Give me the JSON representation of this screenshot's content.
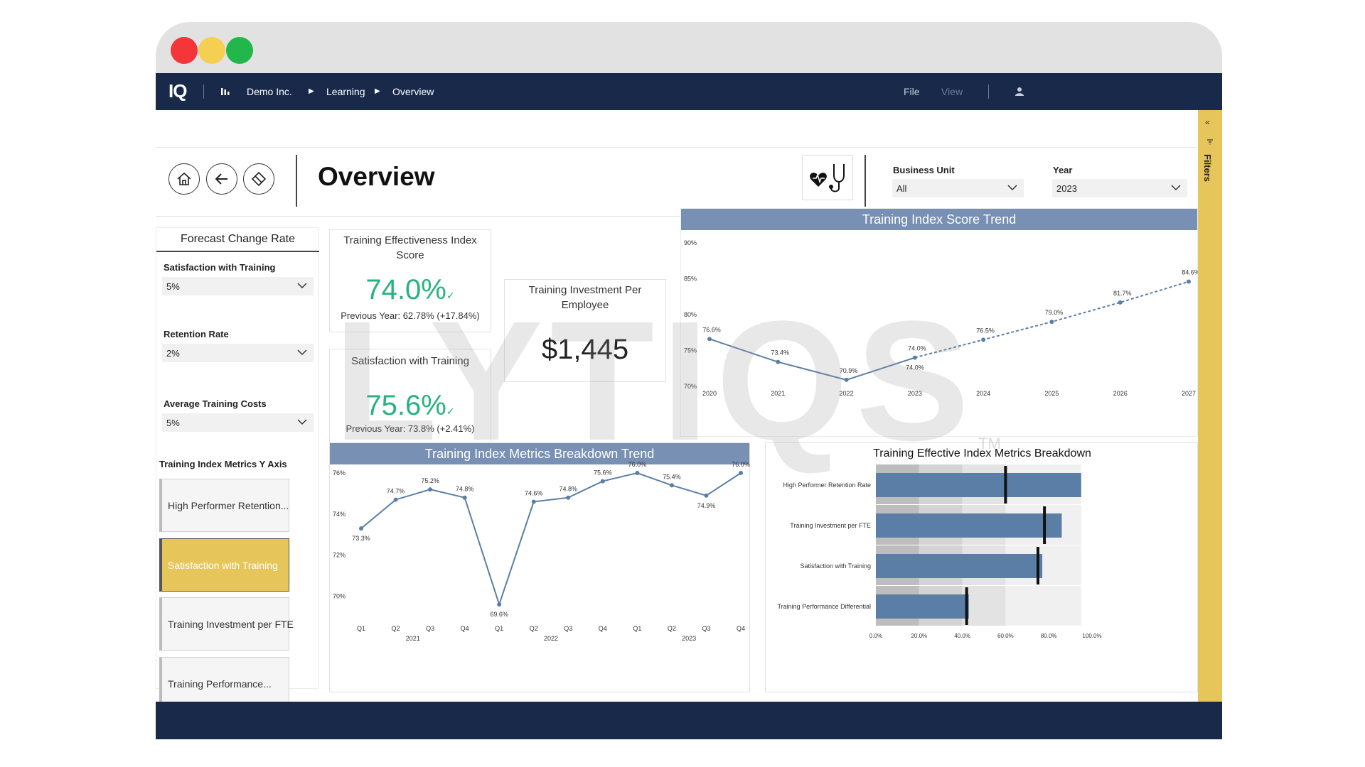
{
  "traffic_lights": {
    "red": "#f4363a",
    "yellow": "#f5cf52",
    "green": "#21b74b"
  },
  "navbar": {
    "logo": "IQ",
    "org": "Demo Inc.",
    "crumb1": "Learning",
    "crumb2": "Overview",
    "file": "File",
    "view": "View"
  },
  "header": {
    "title": "Overview"
  },
  "filters_header": {
    "business_unit_label": "Business Unit",
    "business_unit_value": "All",
    "year_label": "Year",
    "year_value": "2023"
  },
  "filter_pane": {
    "label": "Filters"
  },
  "forecast": {
    "title": "Forecast Change Rate",
    "items": [
      {
        "label": "Satisfaction with Training",
        "value": "5%"
      },
      {
        "label": "Retention Rate",
        "value": "2%"
      },
      {
        "label": "Average Training Costs",
        "value": "5%"
      }
    ]
  },
  "y_axis_selector": {
    "title": "Training Index Metrics Y Axis",
    "tiles": [
      "High Performer Retention...",
      "Satisfaction with Training",
      "Training Investment per FTE",
      "Training Performance..."
    ],
    "active_index": 1
  },
  "kpis": {
    "effectiveness": {
      "title": "Training Effectiveness Index Score",
      "value": "74.0%",
      "sub": "Previous Year: 62.78% (+17.84%)"
    },
    "satisfaction": {
      "title": "Satisfaction with Training",
      "value": "75.6%",
      "sub": "Previous Year: 73.8% (+2.41%)"
    },
    "investment": {
      "title": "Training Investment Per Employee",
      "value": "$1,445"
    }
  },
  "watermark": {
    "text": "LYTIQS",
    "tm": "TM"
  },
  "colors": {
    "navy": "#18294a",
    "accent": "#e6c55a",
    "series": "#5b7ea6",
    "kpi_green": "#25b47e",
    "title_bar": "#7790b3"
  },
  "chart_data": [
    {
      "type": "line",
      "title": "Training Index Score Trend",
      "x": [
        "2020",
        "2021",
        "2022",
        "2023",
        "2024",
        "2025",
        "2026",
        "2027"
      ],
      "values": [
        76.6,
        73.4,
        70.9,
        74.0,
        76.5,
        79.0,
        81.7,
        84.6
      ],
      "labels": [
        "76.6%",
        "73.4%",
        "70.9%",
        "74.0%",
        "76.5%",
        "79.0%",
        "81.7%",
        "84.6%"
      ],
      "extra_label": "74.0%",
      "forecast_from_index": 3,
      "y_ticks": [
        "70%",
        "75%",
        "80%",
        "85%",
        "90%"
      ],
      "ylim": [
        70,
        90
      ],
      "grid": false
    },
    {
      "type": "line",
      "title": "Training Index Metrics Breakdown Trend",
      "x_quarters": [
        "Q1",
        "Q2",
        "Q3",
        "Q4",
        "Q1",
        "Q2",
        "Q3",
        "Q4",
        "Q1",
        "Q2",
        "Q3",
        "Q4"
      ],
      "x_years": [
        "2021",
        "2022",
        "2023"
      ],
      "values": [
        73.3,
        74.7,
        75.2,
        74.8,
        69.6,
        74.6,
        74.8,
        75.6,
        76.0,
        75.4,
        74.9,
        76.0
      ],
      "labels": [
        "73.3%",
        "74.7%",
        "75.2%",
        "74.8%",
        "69.6%",
        "74.6%",
        "74.8%",
        "75.6%",
        "76.0%",
        "75.4%",
        "74.9%",
        "76.0%"
      ],
      "y_ticks": [
        "70%",
        "72%",
        "74%",
        "76%"
      ],
      "ylim": [
        69.5,
        76
      ],
      "grid": false
    },
    {
      "type": "bar",
      "title": "Training Effective Index Metrics Breakdown",
      "orientation": "horizontal-bullet",
      "categories": [
        "High Performer Retention Rate",
        "Training Investment per FTE",
        "Satisfaction with Training",
        "Training Performance Differential"
      ],
      "values": [
        95,
        86,
        77,
        43
      ],
      "targets": [
        60,
        78,
        75,
        42
      ],
      "bands": [
        20,
        40,
        60,
        95
      ],
      "x_ticks": [
        "0.0%",
        "20.0%",
        "40.0%",
        "60.0%",
        "80.0%",
        "100.0%"
      ],
      "xlim": [
        0,
        100
      ],
      "grid": false
    }
  ]
}
